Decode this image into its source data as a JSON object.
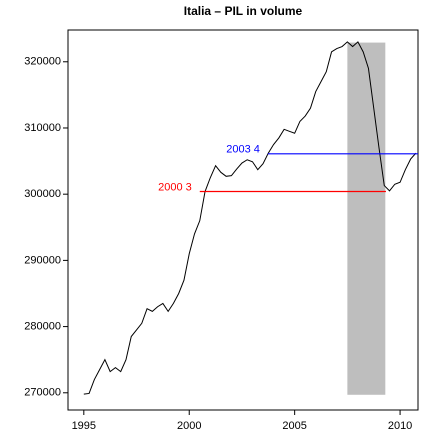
{
  "chart_data": {
    "type": "line",
    "title": "Italia – PIL in volume",
    "x": [
      1995.0,
      1995.25,
      1995.5,
      1995.75,
      1996.0,
      1996.25,
      1996.5,
      1996.75,
      1997.0,
      1997.25,
      1997.5,
      1997.75,
      1998.0,
      1998.25,
      1998.5,
      1998.75,
      1999.0,
      1999.25,
      1999.5,
      1999.75,
      2000.0,
      2000.25,
      2000.5,
      2000.75,
      2001.0,
      2001.25,
      2001.5,
      2001.75,
      2002.0,
      2002.25,
      2002.5,
      2002.75,
      2003.0,
      2003.25,
      2003.5,
      2003.75,
      2004.0,
      2004.25,
      2004.5,
      2004.75,
      2005.0,
      2005.25,
      2005.5,
      2005.75,
      2006.0,
      2006.25,
      2006.5,
      2006.75,
      2007.0,
      2007.25,
      2007.5,
      2007.75,
      2008.0,
      2008.25,
      2008.5,
      2008.75,
      2009.0,
      2009.25,
      2009.5,
      2009.75,
      2010.0,
      2010.25,
      2010.5,
      2010.75
    ],
    "series": [
      {
        "color": "#000000",
        "values": [
          269800,
          269900,
          272000,
          273500,
          275000,
          273200,
          273800,
          273200,
          275000,
          278500,
          279500,
          280500,
          282700,
          282300,
          283000,
          283500,
          282300,
          283500,
          285000,
          287000,
          291000,
          294000,
          296000,
          300400,
          302500,
          304300,
          303300,
          302700,
          302800,
          303800,
          304700,
          305200,
          304900,
          303700,
          304600,
          306200,
          307500,
          308500,
          309800,
          309500,
          309200,
          311000,
          311800,
          313000,
          315500,
          317000,
          318500,
          321500,
          322000,
          322300,
          323000,
          322300,
          323000,
          321500,
          319000,
          313000,
          307000,
          301300,
          300500,
          301500,
          301800,
          303700,
          305300,
          306200
        ]
      }
    ],
    "shaded": {
      "color": "#bebebe",
      "x": [
        2007.5,
        2009.3
      ],
      "y": [
        269700,
        322900
      ]
    },
    "segments": [
      {
        "label": "2000 3",
        "color": "#ff0000",
        "y": 300400,
        "x": [
          2000.5,
          2009.33
        ]
      },
      {
        "label": "2003 4",
        "color": "#0000ff",
        "y": 306100,
        "x": [
          2003.73,
          2010.85
        ]
      }
    ],
    "xlim": [
      1994.25,
      2010.85
    ],
    "ylim": [
      267400,
      324800
    ],
    "xticks": [
      1995,
      2000,
      2005,
      2010
    ],
    "yticks": [
      270000,
      280000,
      290000,
      300000,
      310000,
      320000
    ]
  }
}
